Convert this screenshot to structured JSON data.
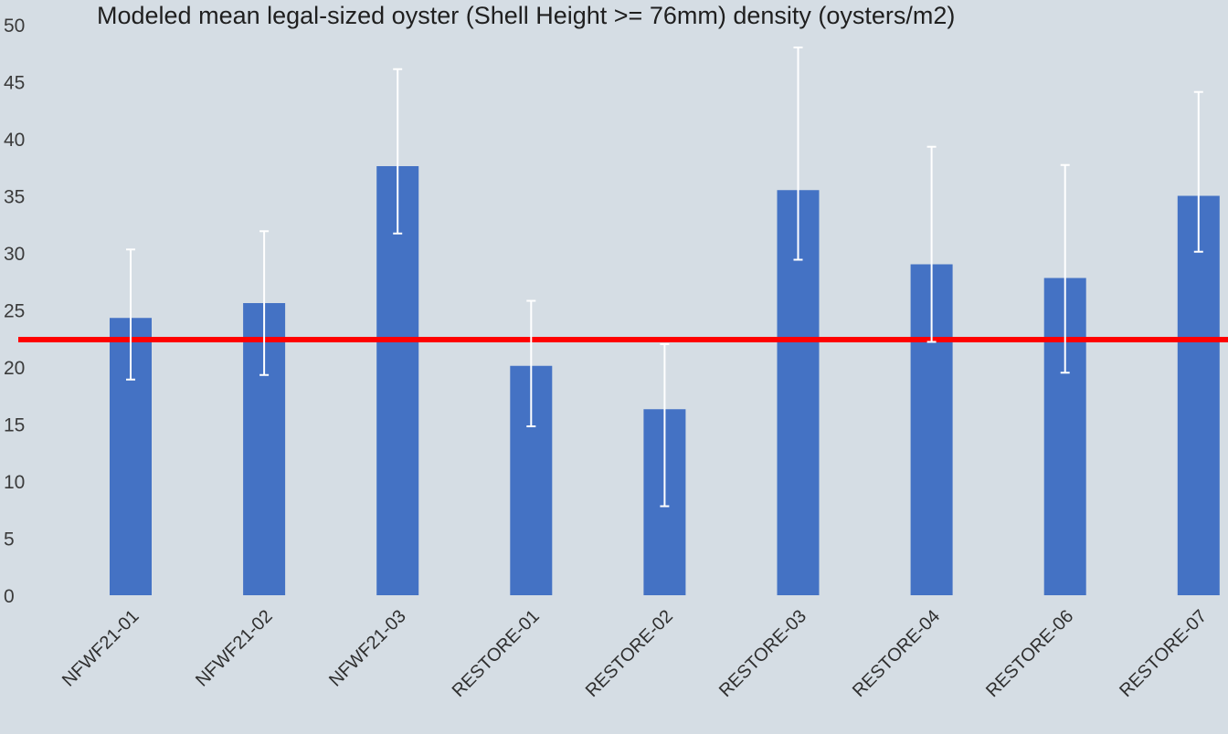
{
  "chart_data": {
    "type": "bar",
    "title": "Modeled mean legal-sized oyster (Shell Height >= 76mm) density (oysters/m2)",
    "xlabel": "",
    "ylabel": "",
    "ylim": [
      0,
      50
    ],
    "yticks": [
      0,
      5,
      10,
      15,
      20,
      25,
      30,
      35,
      40,
      45,
      50
    ],
    "categories": [
      "NFWF21-01",
      "NFWF21-02",
      "NFWF21-03",
      "RESTORE-01",
      "RESTORE-02",
      "RESTORE-03",
      "RESTORE-04",
      "RESTORE-06",
      "RESTORE-07"
    ],
    "values": [
      24.3,
      25.6,
      37.6,
      20.1,
      16.3,
      35.5,
      29.0,
      27.8,
      35.0
    ],
    "error_low": [
      18.9,
      19.3,
      31.7,
      14.8,
      7.8,
      29.4,
      22.2,
      19.5,
      30.1
    ],
    "error_high": [
      30.3,
      31.9,
      46.1,
      25.8,
      22.0,
      48.0,
      39.3,
      37.7,
      44.1
    ],
    "reference_line": 22.4,
    "grid": false,
    "legend": "none",
    "colors": {
      "bar": "#4472c4",
      "error_bar": "#ffffff",
      "reference_line": "#ff0000",
      "background": "#d5dde4"
    }
  }
}
